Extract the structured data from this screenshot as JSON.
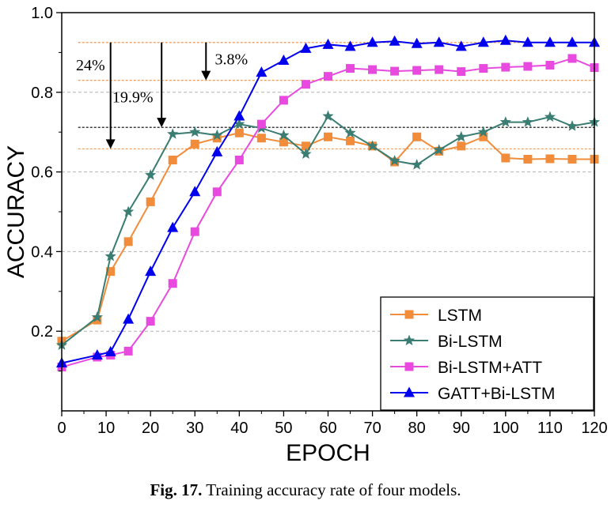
{
  "chart_data": {
    "type": "line",
    "xlabel": "EPOCH",
    "ylabel": "ACCURACY",
    "xlim": [
      0,
      120
    ],
    "ylim": [
      0.0,
      1.0
    ],
    "xticks": [
      "0",
      "10",
      "20",
      "30",
      "40",
      "50",
      "60",
      "70",
      "80",
      "90",
      "100",
      "110",
      "120"
    ],
    "yticks": [
      "0.2",
      "0.4",
      "0.6",
      "0.8",
      "1.0"
    ],
    "grid": "horizontal dashed",
    "legend_position": "bottom-right",
    "series": [
      {
        "name": "LSTM",
        "color": "#f08c3a",
        "marker": "square",
        "x": [
          0,
          8,
          11,
          15,
          20,
          25,
          30,
          35,
          40,
          45,
          50,
          55,
          60,
          65,
          70,
          75,
          80,
          85,
          90,
          95,
          100,
          105,
          110,
          115,
          120
        ],
        "y": [
          0.175,
          0.228,
          0.35,
          0.425,
          0.525,
          0.63,
          0.67,
          0.685,
          0.698,
          0.685,
          0.675,
          0.665,
          0.688,
          0.678,
          0.665,
          0.625,
          0.688,
          0.652,
          0.665,
          0.688,
          0.635,
          0.632,
          0.633,
          0.632,
          0.632
        ]
      },
      {
        "name": "Bi-LSTM",
        "color": "#3a7d72",
        "marker": "star",
        "x": [
          0,
          8,
          11,
          15,
          20,
          25,
          30,
          35,
          40,
          45,
          50,
          55,
          60,
          65,
          70,
          75,
          80,
          85,
          90,
          95,
          100,
          105,
          110,
          115,
          120
        ],
        "y": [
          0.165,
          0.235,
          0.388,
          0.5,
          0.592,
          0.695,
          0.7,
          0.692,
          0.72,
          0.71,
          0.692,
          0.645,
          0.74,
          0.698,
          0.665,
          0.628,
          0.618,
          0.655,
          0.688,
          0.7,
          0.725,
          0.725,
          0.738,
          0.715,
          0.725
        ]
      },
      {
        "name": "Bi-LSTM+ATT",
        "color": "#e84ae0",
        "marker": "square",
        "x": [
          0,
          8,
          11,
          15,
          20,
          25,
          30,
          35,
          40,
          45,
          50,
          55,
          60,
          65,
          70,
          75,
          80,
          85,
          90,
          95,
          100,
          105,
          110,
          115,
          120
        ],
        "y": [
          0.11,
          0.135,
          0.14,
          0.15,
          0.225,
          0.32,
          0.45,
          0.55,
          0.63,
          0.72,
          0.78,
          0.82,
          0.84,
          0.86,
          0.857,
          0.853,
          0.855,
          0.857,
          0.852,
          0.86,
          0.863,
          0.865,
          0.868,
          0.885,
          0.862
        ]
      },
      {
        "name": "GATT+Bi-LSTM",
        "color": "#0000ee",
        "marker": "triangle",
        "x": [
          0,
          8,
          11,
          15,
          20,
          25,
          30,
          35,
          40,
          45,
          50,
          55,
          60,
          65,
          70,
          75,
          80,
          85,
          90,
          95,
          100,
          105,
          110,
          115,
          120
        ],
        "y": [
          0.12,
          0.14,
          0.148,
          0.23,
          0.35,
          0.46,
          0.55,
          0.65,
          0.74,
          0.85,
          0.88,
          0.91,
          0.92,
          0.915,
          0.925,
          0.928,
          0.922,
          0.925,
          0.915,
          0.925,
          0.93,
          0.925,
          0.925,
          0.925,
          0.925
        ]
      }
    ],
    "reference_lines": [
      {
        "y": 0.925,
        "color": "#f08c3a"
      },
      {
        "y": 0.83,
        "color": "#f08c3a"
      },
      {
        "y": 0.712,
        "color": "#000000"
      },
      {
        "y": 0.658,
        "color": "#f08c3a"
      }
    ],
    "arrows": [
      {
        "x": 11,
        "y_from": 0.925,
        "y_to": 0.658
      },
      {
        "x": 22.5,
        "y_from": 0.925,
        "y_to": 0.712
      },
      {
        "x": 32.5,
        "y_from": 0.925,
        "y_to": 0.83
      }
    ],
    "annotations": [
      {
        "text": "24%",
        "x": 3.2,
        "y": 0.855
      },
      {
        "text": "19.9%",
        "x": 11.4,
        "y": 0.775
      },
      {
        "text": "3.8%",
        "x": 34.5,
        "y": 0.87
      }
    ]
  },
  "caption": {
    "label": "Fig. 17.",
    "text": "Training accuracy rate of four models."
  }
}
